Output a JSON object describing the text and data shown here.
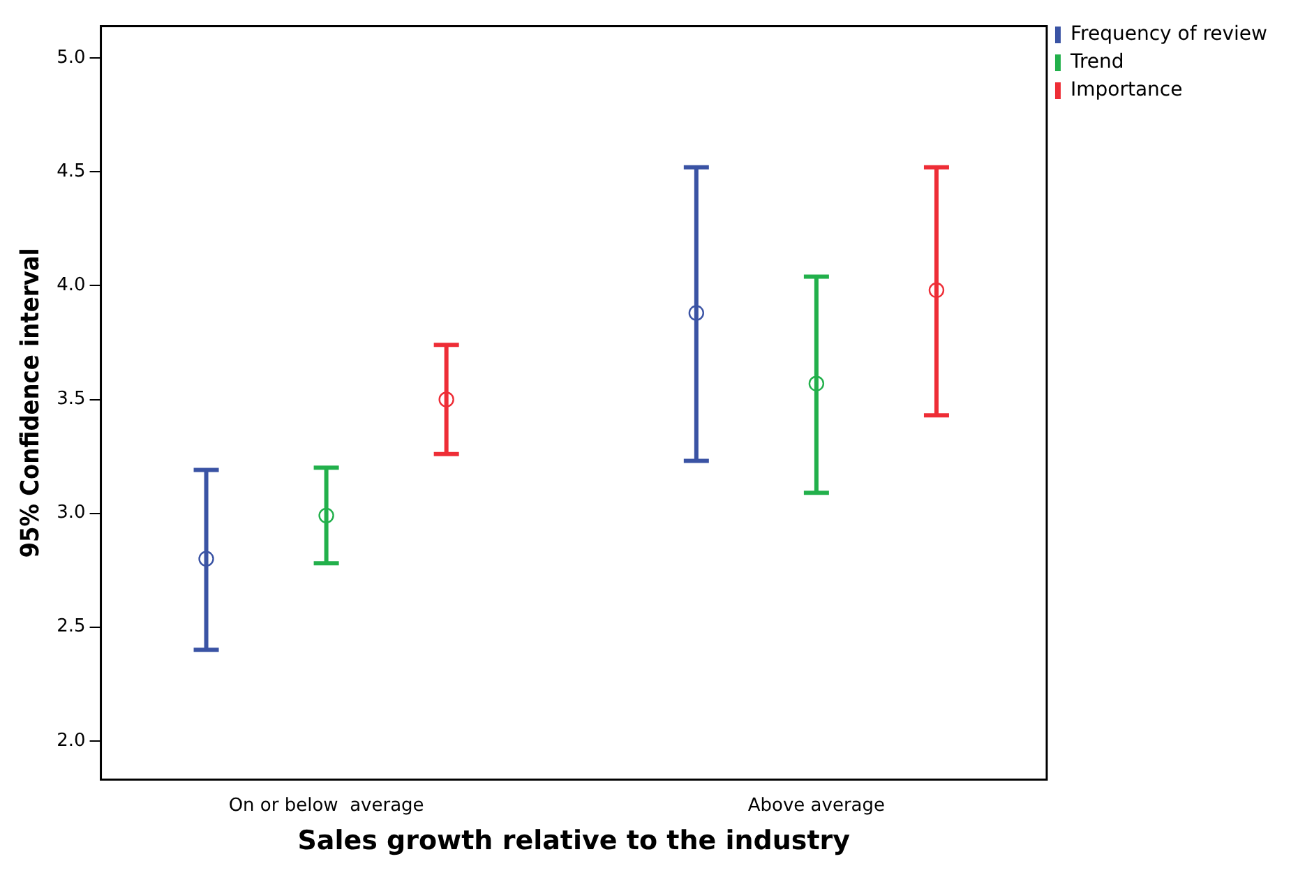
{
  "chart_data": {
    "type": "scatter",
    "xlabel": "Sales growth relative to the industry",
    "ylabel": "95% Confidence interval",
    "categories": [
      "On or below  average",
      "Above average"
    ],
    "series": [
      {
        "name": "Frequency of review",
        "color": "#3a53a4",
        "values": [
          2.8,
          3.88
        ],
        "errors": [
          [
            2.4,
            3.19
          ],
          [
            3.23,
            4.52
          ]
        ]
      },
      {
        "name": "Trend",
        "color": "#22b04b",
        "values": [
          2.99,
          3.57
        ],
        "errors": [
          [
            2.78,
            3.2
          ],
          [
            3.09,
            4.04
          ]
        ]
      },
      {
        "name": "Importance",
        "color": "#ee2d36",
        "values": [
          3.5,
          3.98
        ],
        "errors": [
          [
            3.26,
            3.74
          ],
          [
            3.43,
            4.52
          ]
        ]
      }
    ],
    "ylim": [
      1.83,
      5.14
    ],
    "yticks": [
      {
        "value": 2,
        "label": "2.0"
      },
      {
        "value": 2.5,
        "label": "2.5"
      },
      {
        "value": 3,
        "label": "3.0"
      },
      {
        "value": 3.5,
        "label": "3.5"
      },
      {
        "value": 4,
        "label": "4.0"
      },
      {
        "value": 4.5,
        "label": "4.5"
      },
      {
        "value": 5,
        "label": "5.0"
      }
    ],
    "grid": false,
    "legend": "top right",
    "marker": "circle"
  }
}
